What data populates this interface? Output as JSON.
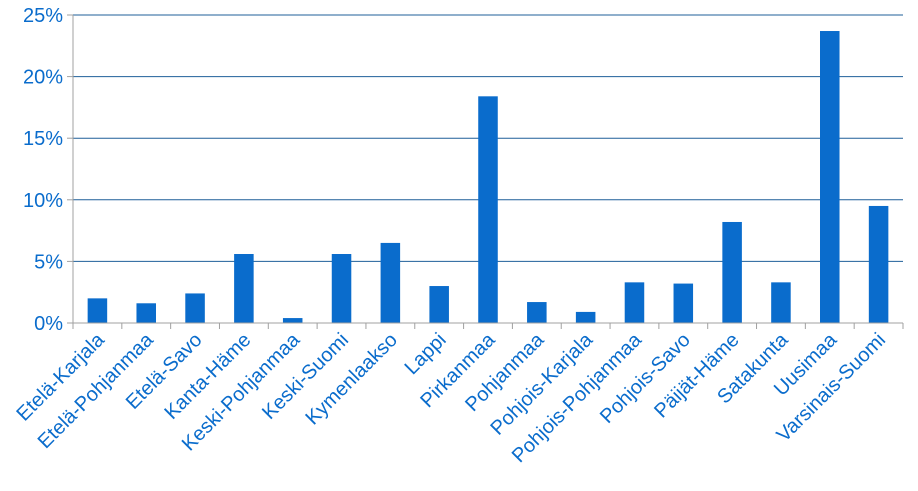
{
  "chart_data": {
    "type": "bar",
    "title": "",
    "xlabel": "",
    "ylabel": "",
    "ylim": [
      0,
      25
    ],
    "yticks": [
      0,
      5,
      10,
      15,
      20,
      25
    ],
    "ytick_labels": [
      "0%",
      "5%",
      "10%",
      "15%",
      "20%",
      "25%"
    ],
    "grid": true,
    "categories": [
      "Etelä-Karjala",
      "Etelä-Pohjanmaa",
      "Etelä-Savo",
      "Kanta-Häme",
      "Keski-Pohjanmaa",
      "Keski-Suomi",
      "Kymenlaakso",
      "Lappi",
      "Pirkanmaa",
      "Pohjanmaa",
      "Pohjois-Karjala",
      "Pohjois-Pohjanmaa",
      "Pohjois-Savo",
      "Päijät-Häme",
      "Satakunta",
      "Uusimaa",
      "Varsinais-Suomi"
    ],
    "values": [
      2.0,
      1.6,
      2.4,
      5.6,
      0.4,
      5.6,
      6.5,
      3.0,
      18.4,
      1.7,
      0.9,
      3.3,
      3.2,
      8.2,
      3.3,
      23.7,
      9.5
    ],
    "colors": {
      "bar": "#0a6ccc",
      "tick_label": "#0a6ccc",
      "grid": "#1f5f99",
      "axis": "#a0a0a0"
    }
  }
}
